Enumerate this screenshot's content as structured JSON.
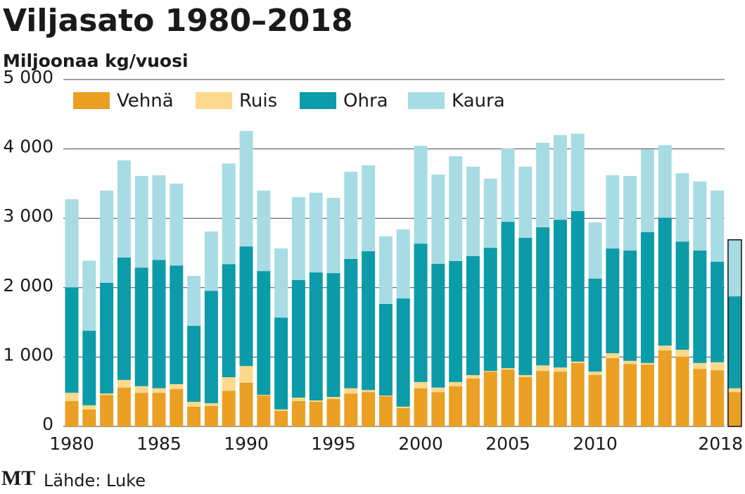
{
  "chart_data": {
    "type": "stacked-bar",
    "title": "Viljasato 1980–2018",
    "subtitle": "Miljoonaa kg/vuosi",
    "source": "Lähde: Luke",
    "logo": "MT",
    "categories": [
      "1980",
      null,
      null,
      null,
      null,
      "1985",
      null,
      null,
      null,
      null,
      "1990",
      null,
      null,
      null,
      null,
      "1995",
      null,
      null,
      null,
      null,
      "2000",
      null,
      null,
      null,
      null,
      "2005",
      null,
      null,
      null,
      null,
      "2010",
      null,
      null,
      null,
      null,
      null,
      null,
      null,
      "2018"
    ],
    "series": [
      {
        "name": "Vehnä",
        "color": "#e9a023",
        "values": [
          365,
          245,
          455,
          560,
          485,
          485,
          540,
          285,
          295,
          515,
          630,
          445,
          225,
          365,
          355,
          395,
          475,
          495,
          435,
          265,
          550,
          495,
          580,
          690,
          790,
          820,
          710,
          800,
          790,
          915,
          740,
          985,
          900,
          890,
          1095,
          1005,
          830,
          810,
          495
        ]
      },
      {
        "name": "Ruis",
        "color": "#fcd98c",
        "values": [
          120,
          60,
          20,
          110,
          95,
          65,
          70,
          70,
          40,
          195,
          240,
          10,
          20,
          50,
          20,
          30,
          75,
          30,
          10,
          20,
          90,
          65,
          60,
          50,
          10,
          20,
          30,
          80,
          60,
          20,
          50,
          70,
          45,
          25,
          70,
          100,
          85,
          115,
          55
        ]
      },
      {
        "name": "Ohra",
        "color": "#0c9ba8",
        "values": [
          1520,
          1075,
          1595,
          1765,
          1710,
          1850,
          1710,
          1095,
          1620,
          1630,
          1725,
          1785,
          1325,
          1695,
          1845,
          1785,
          1865,
          2000,
          1320,
          1560,
          1995,
          1785,
          1745,
          1715,
          1775,
          2110,
          1980,
          1990,
          2130,
          2170,
          1340,
          1510,
          1590,
          1885,
          1845,
          1560,
          1620,
          1450,
          1325
        ]
      },
      {
        "name": "Kaura",
        "color": "#a7dce4",
        "values": [
          1270,
          1010,
          1330,
          1400,
          1320,
          1220,
          1180,
          720,
          855,
          1450,
          1665,
          1160,
          995,
          1195,
          1150,
          1085,
          1255,
          1240,
          975,
          995,
          1410,
          1285,
          1510,
          1290,
          995,
          1055,
          1025,
          1220,
          1220,
          1115,
          810,
          1055,
          1075,
          1195,
          1045,
          985,
          995,
          1025,
          815
        ]
      }
    ],
    "ylim": [
      0,
      5000
    ],
    "yticks": [
      0,
      {
        "value": 1000,
        "label": "1 000"
      },
      {
        "value": 2000,
        "label": "2 000"
      },
      {
        "value": 3000,
        "label": "3 000"
      },
      {
        "value": 4000,
        "label": "4 000"
      },
      {
        "value": 5000,
        "label": "5 000"
      }
    ],
    "grid": true
  }
}
